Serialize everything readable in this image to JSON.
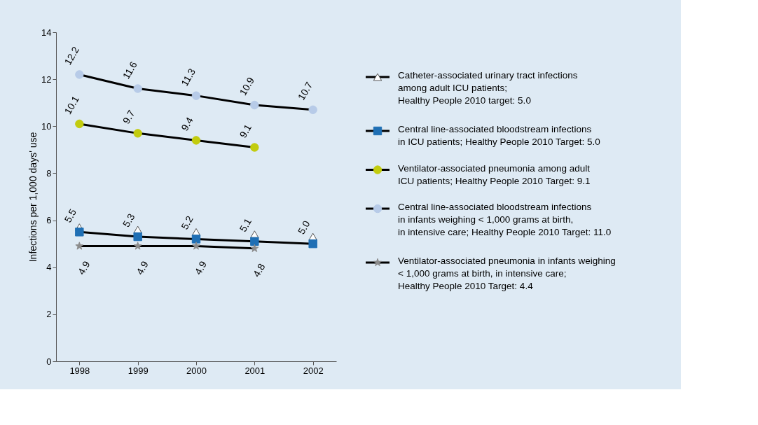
{
  "chart_data": {
    "type": "line",
    "ylabel": "Infections per 1,000 days' use",
    "categories": [
      "1998",
      "1999",
      "2000",
      "2001",
      "2002"
    ],
    "ylim": [
      0,
      14
    ],
    "yticks": [
      0,
      2,
      4,
      6,
      8,
      10,
      12,
      14
    ],
    "grid": false,
    "legend": "right",
    "series": [
      {
        "name": "Catheter-associated urinary tract infections\namong adult ICU patients;\nHealthy People 2010 target: 5.0",
        "type": "scatter",
        "marker": "triangle",
        "color": "#ffffff",
        "values": [
          5.7,
          5.6,
          5.5,
          5.4,
          5.3
        ]
      },
      {
        "name": "Central line-associated bloodstream infections\nin ICU patients; Healthy People 2010 Target: 5.0",
        "marker": "square",
        "color": "#1f6fb4",
        "values": [
          5.5,
          5.3,
          5.2,
          5.1,
          5.0
        ],
        "value_labels": [
          "5.5",
          "5.3",
          "5.2",
          "5.1",
          "5.0"
        ]
      },
      {
        "name": "Ventilator-associated pneumonia among adult\nICU patients; Healthy People 2010 Target: 9.1",
        "marker": "circle",
        "color": "#c2cc0e",
        "values": [
          10.1,
          9.7,
          9.4,
          9.1,
          null
        ],
        "data_labels": true
      },
      {
        "name": "Central line-associated bloodstream infections\nin infants weighing < 1,000 grams at birth,\nin intensive care; Healthy People 2010 Target: 11.0",
        "marker": "circle",
        "color": "#b7cbe8",
        "values": [
          12.2,
          11.6,
          11.3,
          10.9,
          10.7
        ],
        "data_labels": true
      },
      {
        "name": "Ventilator-associated pneumonia in infants weighing\n< 1,000 grams at birth, in intensive care;\nHealthy People 2010 Target: 4.4",
        "marker": "star",
        "color": "#8c8c8c",
        "values": [
          4.9,
          4.9,
          4.9,
          4.8,
          null
        ],
        "data_labels": true
      }
    ]
  }
}
